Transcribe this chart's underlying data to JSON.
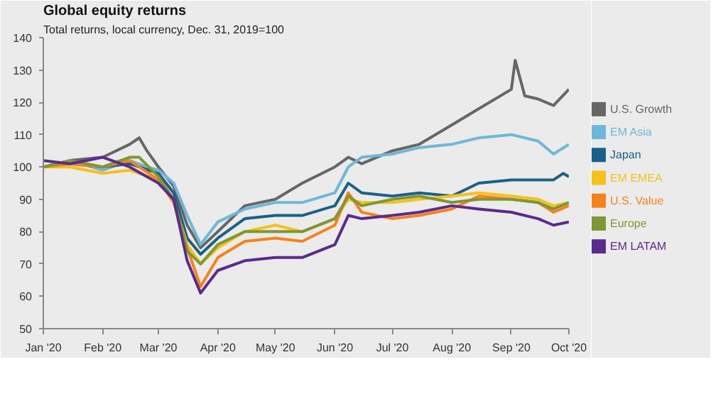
{
  "chart_data": {
    "type": "line",
    "title": "Global equity returns",
    "subtitle": "Total returns, local currency, Dec. 31, 2019=100",
    "xlim": [
      "2020-01-01",
      "2020-10-01"
    ],
    "xticks": [
      {
        "value": "2020-01-01",
        "label": "Jan '20"
      },
      {
        "value": "2020-02-01",
        "label": "Feb '20"
      },
      {
        "value": "2020-03-01",
        "label": "Mar '20"
      },
      {
        "value": "2020-04-01",
        "label": "Apr '20"
      },
      {
        "value": "2020-05-01",
        "label": "May '20"
      },
      {
        "value": "2020-06-01",
        "label": "Jun '20"
      },
      {
        "value": "2020-07-01",
        "label": "Jul '20"
      },
      {
        "value": "2020-08-01",
        "label": "Aug '20"
      },
      {
        "value": "2020-09-01",
        "label": "Sep '20"
      },
      {
        "value": "2020-10-01",
        "label": "Oct '20"
      }
    ],
    "ylim": [
      50,
      140
    ],
    "yticks": [
      50,
      60,
      70,
      80,
      90,
      100,
      110,
      120,
      130,
      140
    ],
    "grid": false,
    "legend": "right",
    "marker": "none",
    "line_style": "solid",
    "series": [
      {
        "name": "U.S. Growth",
        "color": "#666666",
        "x": [
          "2020-01-01",
          "2020-01-15",
          "2020-02-01",
          "2020-02-15",
          "2020-02-20",
          "2020-02-24",
          "2020-03-01",
          "2020-03-09",
          "2020-03-16",
          "2020-03-23",
          "2020-04-01",
          "2020-04-15",
          "2020-05-01",
          "2020-05-15",
          "2020-06-01",
          "2020-06-08",
          "2020-06-15",
          "2020-07-01",
          "2020-07-15",
          "2020-08-01",
          "2020-08-15",
          "2020-09-01",
          "2020-09-03",
          "2020-09-08",
          "2020-09-15",
          "2020-09-23",
          "2020-10-01"
        ],
        "values": [
          100,
          102,
          103,
          107,
          109,
          105,
          100,
          94,
          82,
          75,
          80,
          88,
          90,
          95,
          100,
          103,
          101,
          105,
          107,
          113,
          118,
          124,
          133,
          122,
          121,
          119,
          124
        ]
      },
      {
        "name": "EM Asia",
        "color": "#6fb7d8",
        "x": [
          "2020-01-01",
          "2020-01-15",
          "2020-02-01",
          "2020-02-15",
          "2020-02-24",
          "2020-03-01",
          "2020-03-09",
          "2020-03-16",
          "2020-03-23",
          "2020-04-01",
          "2020-04-15",
          "2020-05-01",
          "2020-05-15",
          "2020-06-01",
          "2020-06-08",
          "2020-06-15",
          "2020-07-01",
          "2020-07-15",
          "2020-08-01",
          "2020-08-15",
          "2020-09-01",
          "2020-09-15",
          "2020-09-23",
          "2020-10-01"
        ],
        "values": [
          100,
          102,
          99,
          102,
          100,
          99,
          95,
          85,
          76,
          83,
          87,
          89,
          89,
          92,
          100,
          103,
          104,
          106,
          107,
          109,
          110,
          108,
          104,
          107
        ]
      },
      {
        "name": "Japan",
        "color": "#1a6188",
        "x": [
          "2020-01-01",
          "2020-01-15",
          "2020-02-01",
          "2020-02-15",
          "2020-03-01",
          "2020-03-09",
          "2020-03-16",
          "2020-03-23",
          "2020-04-01",
          "2020-04-15",
          "2020-05-01",
          "2020-05-15",
          "2020-06-01",
          "2020-06-08",
          "2020-06-15",
          "2020-07-01",
          "2020-07-15",
          "2020-08-01",
          "2020-08-15",
          "2020-09-01",
          "2020-09-15",
          "2020-09-23",
          "2020-09-28",
          "2020-10-01"
        ],
        "values": [
          100,
          101,
          100,
          101,
          98,
          92,
          78,
          73,
          78,
          84,
          85,
          85,
          88,
          95,
          92,
          91,
          92,
          91,
          95,
          96,
          96,
          96,
          98,
          97
        ]
      },
      {
        "name": "EM EMEA",
        "color": "#f5c11a",
        "x": [
          "2020-01-01",
          "2020-01-15",
          "2020-02-01",
          "2020-02-15",
          "2020-03-01",
          "2020-03-09",
          "2020-03-16",
          "2020-03-23",
          "2020-04-01",
          "2020-04-15",
          "2020-05-01",
          "2020-05-15",
          "2020-06-01",
          "2020-06-08",
          "2020-06-15",
          "2020-07-01",
          "2020-07-15",
          "2020-08-01",
          "2020-08-15",
          "2020-09-01",
          "2020-09-15",
          "2020-09-23",
          "2020-10-01"
        ],
        "values": [
          100,
          100,
          98,
          99,
          96,
          89,
          76,
          70,
          75,
          80,
          82,
          80,
          84,
          90,
          89,
          89,
          90,
          91,
          92,
          91,
          90,
          88,
          89
        ]
      },
      {
        "name": "U.S. Value",
        "color": "#f5821f",
        "x": [
          "2020-01-01",
          "2020-01-15",
          "2020-02-01",
          "2020-02-15",
          "2020-03-01",
          "2020-03-09",
          "2020-03-16",
          "2020-03-23",
          "2020-04-01",
          "2020-04-15",
          "2020-05-01",
          "2020-05-15",
          "2020-06-01",
          "2020-06-08",
          "2020-06-15",
          "2020-07-01",
          "2020-07-15",
          "2020-08-01",
          "2020-08-15",
          "2020-09-01",
          "2020-09-15",
          "2020-09-23",
          "2020-10-01"
        ],
        "values": [
          100,
          101,
          100,
          102,
          96,
          89,
          75,
          63,
          72,
          77,
          78,
          77,
          82,
          92,
          86,
          84,
          85,
          87,
          91,
          90,
          89,
          86,
          88
        ]
      },
      {
        "name": "Europe",
        "color": "#7f9637",
        "x": [
          "2020-01-01",
          "2020-01-15",
          "2020-02-01",
          "2020-02-15",
          "2020-02-20",
          "2020-03-01",
          "2020-03-09",
          "2020-03-16",
          "2020-03-23",
          "2020-04-01",
          "2020-04-15",
          "2020-05-01",
          "2020-05-15",
          "2020-06-01",
          "2020-06-08",
          "2020-06-15",
          "2020-07-01",
          "2020-07-15",
          "2020-08-01",
          "2020-08-15",
          "2020-09-01",
          "2020-09-15",
          "2020-09-23",
          "2020-10-01"
        ],
        "values": [
          100,
          102,
          100,
          103,
          103,
          97,
          90,
          74,
          70,
          76,
          80,
          80,
          80,
          84,
          91,
          88,
          90,
          91,
          89,
          90,
          90,
          89,
          87,
          89
        ]
      },
      {
        "name": "EM LATAM",
        "color": "#5b2b8c",
        "x": [
          "2020-01-01",
          "2020-01-15",
          "2020-02-01",
          "2020-02-15",
          "2020-03-01",
          "2020-03-09",
          "2020-03-16",
          "2020-03-23",
          "2020-04-01",
          "2020-04-15",
          "2020-05-01",
          "2020-05-15",
          "2020-06-01",
          "2020-06-08",
          "2020-06-15",
          "2020-07-01",
          "2020-07-15",
          "2020-08-01",
          "2020-08-15",
          "2020-09-01",
          "2020-09-15",
          "2020-09-23",
          "2020-10-01"
        ],
        "values": [
          102,
          101,
          103,
          100,
          95,
          90,
          71,
          61,
          68,
          71,
          72,
          72,
          76,
          85,
          84,
          85,
          86,
          88,
          87,
          86,
          84,
          82,
          83
        ]
      }
    ]
  }
}
